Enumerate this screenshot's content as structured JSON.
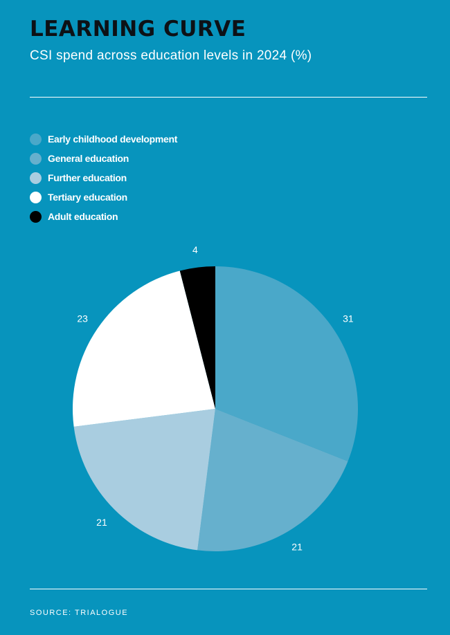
{
  "header": {
    "title": "LEARNING CURVE",
    "subtitle": "CSI spend across education levels in 2024 (%)"
  },
  "footer": {
    "source": "SOURCE: TRIALOGUE"
  },
  "colors": {
    "background": "#0794bd",
    "title": "#0d1116"
  },
  "chart_data": {
    "type": "pie",
    "unit": "%",
    "legend_position": "top-left",
    "start": "12 o'clock, clockwise",
    "slices": [
      {
        "label": "Early childhood development",
        "value": 31,
        "color": "#4aa8c9"
      },
      {
        "label": "General education",
        "value": 21,
        "color": "#66b0cd"
      },
      {
        "label": "Further education",
        "value": 21,
        "color": "#a9cde0"
      },
      {
        "label": "Tertiary education",
        "value": 23,
        "color": "#ffffff"
      },
      {
        "label": "Adult education",
        "value": 4,
        "color": "#000000"
      }
    ]
  }
}
